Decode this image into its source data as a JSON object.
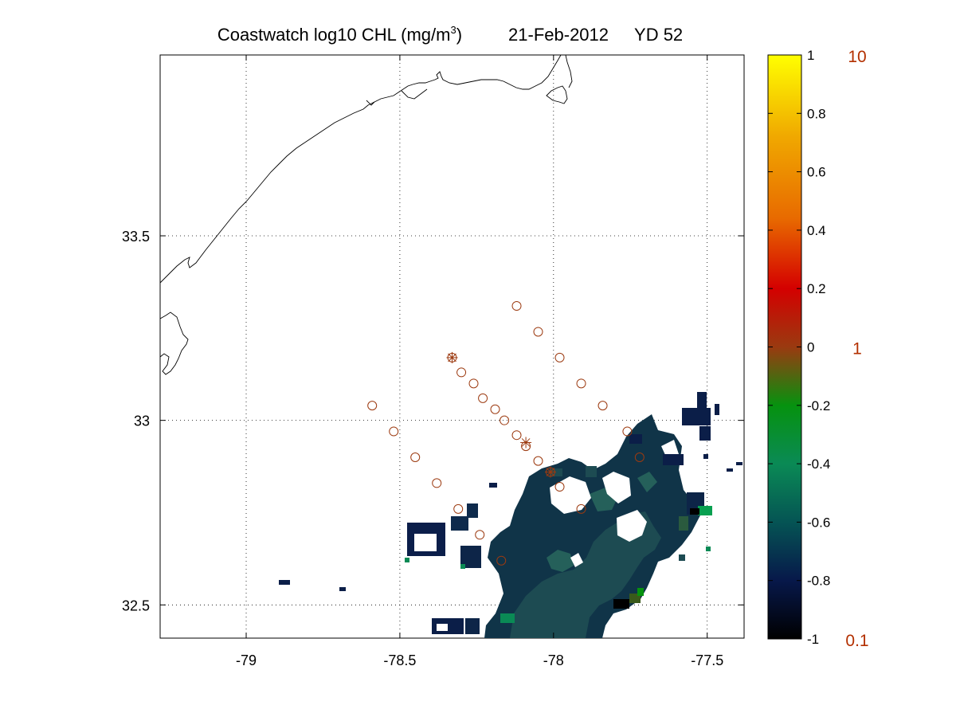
{
  "title": {
    "prefix": "Coastwatch  log10  CHL (mg/m",
    "superscript": "3",
    "suffix": ")",
    "date": "21-Feb-2012",
    "yearday": "YD 52"
  },
  "map": {
    "lon_range": [
      -79.28,
      -77.38
    ],
    "lat_range": [
      32.41,
      33.99
    ],
    "lon_ticks": [
      {
        "value": -79,
        "label": "-79"
      },
      {
        "value": -78.5,
        "label": "-78.5"
      },
      {
        "value": -78,
        "label": "-78"
      },
      {
        "value": -77.5,
        "label": "-77.5"
      }
    ],
    "lat_ticks": [
      {
        "value": 33.5,
        "label": "33.5"
      },
      {
        "value": 33,
        "label": "33"
      },
      {
        "value": 32.5,
        "label": "32.5"
      }
    ],
    "grid": "dotted",
    "coastline_color": "#000000",
    "station_color": "#9c3a10",
    "stations": [
      {
        "lon": -78.12,
        "lat": 33.31
      },
      {
        "lon": -78.05,
        "lat": 33.24
      },
      {
        "lon": -77.98,
        "lat": 33.17
      },
      {
        "lon": -77.91,
        "lat": 33.1
      },
      {
        "lon": -77.84,
        "lat": 33.04
      },
      {
        "lon": -77.76,
        "lat": 32.97
      },
      {
        "lon": -77.72,
        "lat": 32.9
      },
      {
        "lon": -78.59,
        "lat": 33.04
      },
      {
        "lon": -78.52,
        "lat": 32.97
      },
      {
        "lon": -78.45,
        "lat": 32.9
      },
      {
        "lon": -78.38,
        "lat": 32.83
      },
      {
        "lon": -78.31,
        "lat": 32.76
      },
      {
        "lon": -78.24,
        "lat": 32.69
      },
      {
        "lon": -78.17,
        "lat": 32.62
      },
      {
        "lon": -78.33,
        "lat": 33.17
      },
      {
        "lon": -78.3,
        "lat": 33.13
      },
      {
        "lon": -78.26,
        "lat": 33.1
      },
      {
        "lon": -78.23,
        "lat": 33.06
      },
      {
        "lon": -78.19,
        "lat": 33.03
      },
      {
        "lon": -78.16,
        "lat": 33.0
      },
      {
        "lon": -78.12,
        "lat": 32.96
      },
      {
        "lon": -78.09,
        "lat": 32.93
      },
      {
        "lon": -78.05,
        "lat": 32.89
      },
      {
        "lon": -78.01,
        "lat": 32.86
      },
      {
        "lon": -77.98,
        "lat": 32.82
      },
      {
        "lon": -77.91,
        "lat": 32.76
      }
    ],
    "marked_stations": [
      {
        "lon": -78.33,
        "lat": 33.17
      },
      {
        "lon": -78.09,
        "lat": 32.94
      },
      {
        "lon": -78.01,
        "lat": 32.86
      }
    ]
  },
  "colorbar": {
    "range": [
      -1,
      1
    ],
    "ticks": [
      {
        "value": 1,
        "label": "1"
      },
      {
        "value": 0.8,
        "label": "0.8"
      },
      {
        "value": 0.6,
        "label": "0.6"
      },
      {
        "value": 0.4,
        "label": "0.4"
      },
      {
        "value": 0.2,
        "label": "0.2"
      },
      {
        "value": 0,
        "label": "0"
      },
      {
        "value": -0.2,
        "label": "-0.2"
      },
      {
        "value": -0.4,
        "label": "-0.4"
      },
      {
        "value": -0.6,
        "label": "-0.6"
      },
      {
        "value": -0.8,
        "label": "-0.8"
      },
      {
        "value": -1,
        "label": "-1"
      }
    ],
    "right_labels": [
      {
        "value": 1,
        "label": "10"
      },
      {
        "value": 0,
        "label": "1"
      },
      {
        "value": -1,
        "label": "0.1"
      }
    ],
    "colors": [
      "#000000",
      "#07184a",
      "#055454",
      "#0a8a55",
      "#06920f",
      "#9a3a10",
      "#d40000",
      "#e86a00",
      "#f0a800",
      "#ffff00"
    ]
  }
}
